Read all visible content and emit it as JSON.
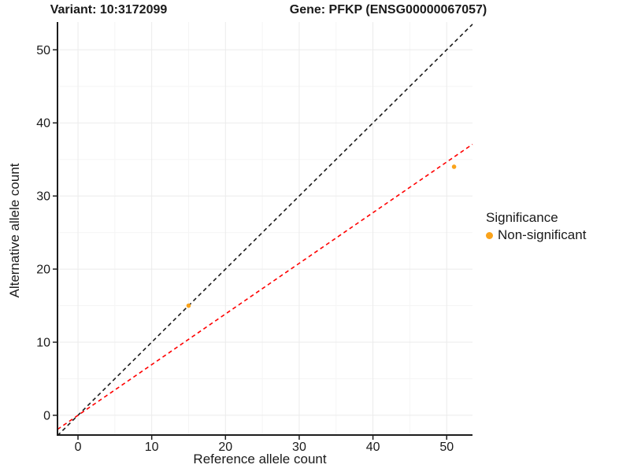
{
  "chart_data": {
    "type": "scatter",
    "titles": {
      "left": "Variant: 10:3172099",
      "right": "Gene: PFKP (ENSG00000067057)"
    },
    "xlabel": "Reference allele count",
    "ylabel": "Alternative allele count",
    "xticks": [
      0,
      10,
      20,
      30,
      40,
      50
    ],
    "yticks": [
      0,
      10,
      20,
      30,
      40,
      50
    ],
    "xlim": [
      -2.78,
      53.5
    ],
    "ylim": [
      -2.7,
      53.8
    ],
    "grid": {
      "major": true,
      "minor": true
    },
    "points": [
      {
        "x": 15,
        "y": 15,
        "group": "Non-significant"
      },
      {
        "x": 51,
        "y": 34,
        "group": "Non-significant"
      }
    ],
    "lines": [
      {
        "name": "identity-line",
        "slope": 1,
        "intercept": 0,
        "color": "#1a1a1a",
        "dash": true
      },
      {
        "name": "fit-line",
        "slope": 0.693,
        "intercept": 0,
        "color": "#ff0000",
        "dash": true
      }
    ],
    "legend": {
      "title": "Significance",
      "position": "right",
      "items": [
        {
          "label": "Non-significant",
          "color": "#FAA31B"
        }
      ]
    },
    "colors": {
      "point": "#FAA31B",
      "major_grid": "#ebebeb",
      "minor_grid": "#f5f5f5",
      "axis": "#1d1d1d",
      "text": "#1a1a1a"
    }
  }
}
